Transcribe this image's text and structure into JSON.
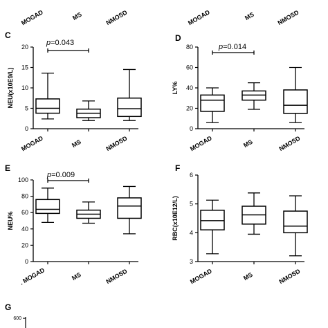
{
  "top_labels": [
    "MOGAD",
    "MS",
    "NMOSD",
    "MOGAD",
    "MS",
    "NMOSD"
  ],
  "panel_g_letter": "G",
  "panel_g_tick": "600",
  "chart_data": [
    {
      "panel": "C",
      "type": "box",
      "categories": [
        "MOGAD",
        "MS",
        "NMOSD"
      ],
      "ylabel": "NEU(x10E9/L)",
      "ylim": [
        0,
        20
      ],
      "yticks": [
        "0",
        "5",
        "10",
        "15",
        "20"
      ],
      "boxes": [
        {
          "min": 2.4,
          "q1": 3.8,
          "median": 5.0,
          "q3": 7.3,
          "max": 13.6
        },
        {
          "min": 2.0,
          "q1": 2.7,
          "median": 3.8,
          "q3": 4.8,
          "max": 6.8
        },
        {
          "min": 2.0,
          "q1": 3.0,
          "median": 4.9,
          "q3": 7.5,
          "max": 14.5
        }
      ],
      "annotation": {
        "p_prefix": "p",
        "p_value": "=0.043",
        "between": [
          "MOGAD",
          "MS"
        ]
      }
    },
    {
      "panel": "D",
      "type": "box",
      "categories": [
        "MOGAD",
        "MS",
        "NMOSD"
      ],
      "ylabel": "LY%",
      "ylim": [
        0,
        80
      ],
      "yticks": [
        "0",
        "20",
        "40",
        "60",
        "80"
      ],
      "boxes": [
        {
          "min": 6,
          "q1": 17,
          "median": 28,
          "q3": 33,
          "max": 40
        },
        {
          "min": 19,
          "q1": 28,
          "median": 33,
          "q3": 37,
          "max": 45
        },
        {
          "min": 6,
          "q1": 15,
          "median": 23,
          "q3": 38,
          "max": 60
        }
      ],
      "annotation": {
        "p_prefix": "p",
        "p_value": "=0.014",
        "between": [
          "MOGAD",
          "MS"
        ]
      }
    },
    {
      "panel": "E",
      "type": "box",
      "categories": [
        "MOGAD",
        "MS",
        "NMOSD"
      ],
      "category_prefix": ".",
      "ylabel": "NEU%",
      "ylim": [
        0,
        100
      ],
      "yticks": [
        "0",
        "20",
        "40",
        "60",
        "80",
        "100"
      ],
      "boxes": [
        {
          "min": 48,
          "q1": 59,
          "median": 64,
          "q3": 76,
          "max": 90
        },
        {
          "min": 47,
          "q1": 53,
          "median": 58,
          "q3": 63,
          "max": 73
        },
        {
          "min": 34,
          "q1": 53,
          "median": 68,
          "q3": 78,
          "max": 92
        }
      ],
      "annotation": {
        "p_prefix": "p",
        "p_value": "=0.009",
        "between": [
          "MOGAD",
          "MS"
        ]
      }
    },
    {
      "panel": "F",
      "type": "box",
      "categories": [
        "MOGAD",
        "MS",
        "NMOSD"
      ],
      "ylabel": "RBC(x10E12/L)",
      "ylim": [
        3,
        6
      ],
      "yticks": [
        "3",
        "4",
        "5",
        "6"
      ],
      "boxes": [
        {
          "min": 3.27,
          "q1": 4.1,
          "median": 4.42,
          "q3": 4.78,
          "max": 5.13
        },
        {
          "min": 3.95,
          "q1": 4.3,
          "median": 4.62,
          "q3": 4.92,
          "max": 5.38
        },
        {
          "min": 3.2,
          "q1": 4.0,
          "median": 4.23,
          "q3": 4.75,
          "max": 5.28
        }
      ],
      "annotation": null
    }
  ]
}
